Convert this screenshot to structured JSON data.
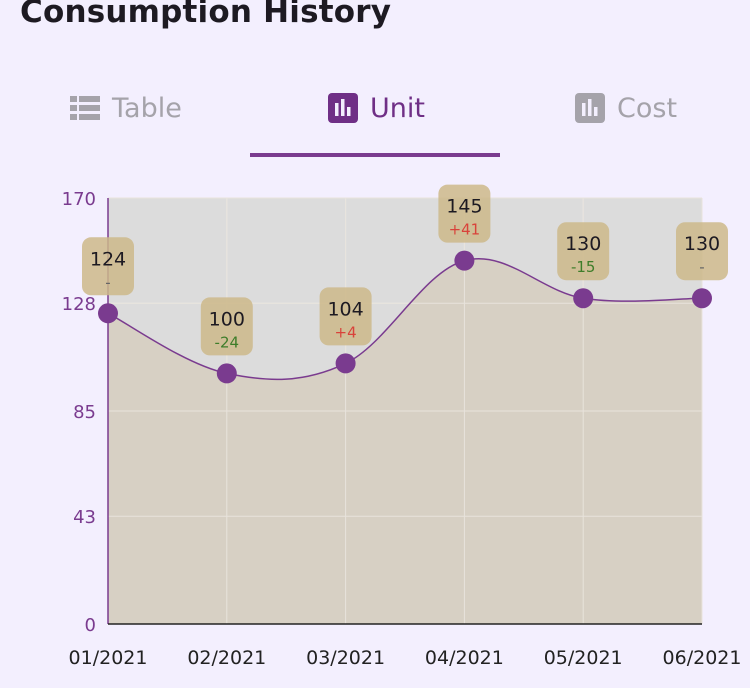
{
  "header": {
    "title": "Consumption History"
  },
  "tabs": [
    {
      "label": "Table",
      "icon": "list-icon",
      "active": false
    },
    {
      "label": "Unit",
      "icon": "bar-chart-icon",
      "active": true
    },
    {
      "label": "Cost",
      "icon": "bar-chart-icon",
      "active": false
    }
  ],
  "colors": {
    "accent": "#7a3b8f",
    "area_fill": "#d6cfc2",
    "plot_bg": "#dcdcdc",
    "badge": "#cdb98a",
    "increase": "#d9423a",
    "decrease": "#3e7d2a",
    "axis_text": "#7a3b8f"
  },
  "chart_data": {
    "type": "area",
    "categories": [
      "01/2021",
      "02/2021",
      "03/2021",
      "04/2021",
      "05/2021",
      "06/2021"
    ],
    "values": [
      124,
      100,
      104,
      145,
      130,
      130
    ],
    "changes": [
      "-",
      "-24",
      "+4",
      "+41",
      "-15",
      "-"
    ],
    "ylim": [
      0,
      170
    ],
    "yticks": [
      "0",
      "43",
      "85",
      "128",
      "170"
    ],
    "grid": true,
    "legend": "none"
  }
}
